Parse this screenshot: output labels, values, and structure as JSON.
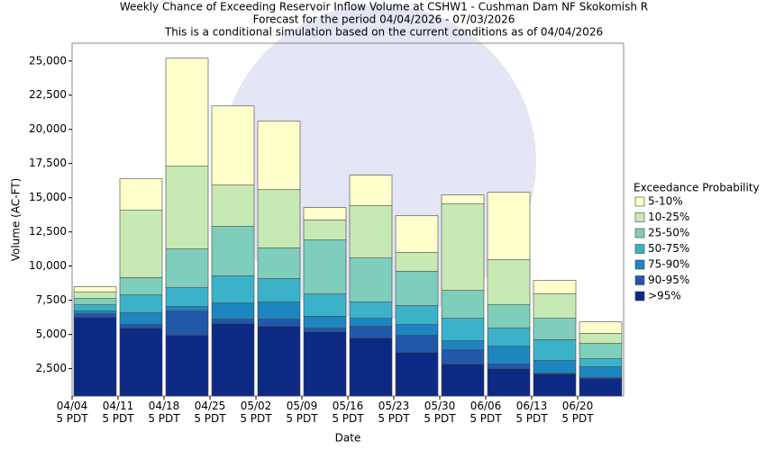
{
  "chart_data": {
    "type": "stacked_bar",
    "title": "Weekly Chance of Exceeding Reservoir Inflow Volume at CSHW1 - Cushman Dam NF Skokomish R",
    "subtitles": [
      "Forecast for the period 04/04/2026 - 07/03/2026",
      "This is a conditional simulation based on the current conditions as of 04/04/2026"
    ],
    "x_label": "Date",
    "y_label": "Volume (AC-FT)",
    "legend_title": "Exceedance Probability",
    "legend": "right",
    "categories": [
      "04/04 5 PDT",
      "04/11 5 PDT",
      "04/18 5 PDT",
      "04/25 5 PDT",
      "05/02 5 PDT",
      "05/09 5 PDT",
      "05/16 5 PDT",
      "05/23 5 PDT",
      "05/30 5 PDT",
      "06/06 5 PDT",
      "06/13 5 PDT",
      "06/20 5 PDT"
    ],
    "series": [
      {
        "name": ">95%",
        "color": "#0c2a84",
        "values": [
          6250,
          5460,
          4930,
          5790,
          5590,
          5200,
          4740,
          3680,
          2830,
          2500,
          2110,
          1780
        ]
      },
      {
        "name": "90-95%",
        "color": "#2158a8",
        "values": [
          260,
          260,
          1780,
          330,
          530,
          260,
          850,
          1250,
          1050,
          330,
          60,
          60
        ]
      },
      {
        "name": "75-90%",
        "color": "#1d85c0",
        "values": [
          200,
          860,
          330,
          1180,
          1250,
          860,
          590,
          790,
          660,
          1310,
          920,
          790
        ]
      },
      {
        "name": "50-75%",
        "color": "#3cb2c8",
        "values": [
          460,
          1310,
          1380,
          1980,
          1710,
          1640,
          1190,
          1390,
          1640,
          1320,
          1520,
          590
        ]
      },
      {
        "name": "25-50%",
        "color": "#7fcdbb",
        "values": [
          460,
          1260,
          2830,
          3620,
          2240,
          3950,
          3220,
          2500,
          2040,
          1710,
          1570,
          1120
        ]
      },
      {
        "name": "10-25%",
        "color": "#c7e9b4",
        "values": [
          460,
          4930,
          6050,
          3020,
          4270,
          1450,
          3820,
          1380,
          6320,
          3290,
          1780,
          730
        ]
      },
      {
        "name": "5-10%",
        "color": "#ffffcc",
        "values": [
          400,
          2300,
          7900,
          5790,
          5000,
          920,
          2240,
          2690,
          660,
          4930,
          990,
          850
        ]
      }
    ],
    "ylim": [
      500,
      26300
    ],
    "yticks": [
      {
        "value": 2500,
        "label": "2,500"
      },
      {
        "value": 5000,
        "label": "5,000"
      },
      {
        "value": 7500,
        "label": "7,500"
      },
      {
        "value": 10000,
        "label": "10,000"
      },
      {
        "value": 12500,
        "label": "12,500"
      },
      {
        "value": 15000,
        "label": "15,000"
      },
      {
        "value": 17500,
        "label": "17,500"
      },
      {
        "value": 20000,
        "label": "20,000"
      },
      {
        "value": 22500,
        "label": "22,500"
      },
      {
        "value": 25000,
        "label": "25,000"
      }
    ],
    "grid": false
  }
}
